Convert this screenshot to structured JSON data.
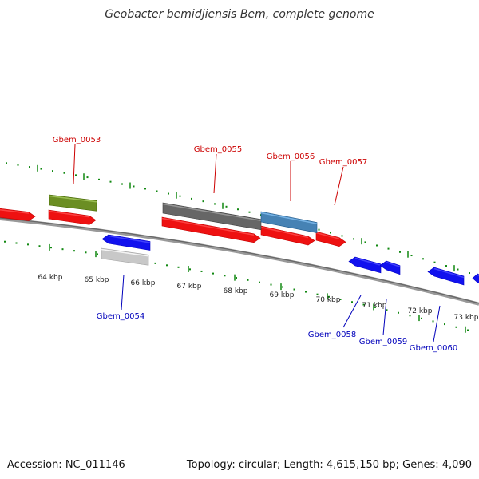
{
  "title": "Geobacter bemidjiensis Bem, complete genome",
  "colors": {
    "forward_strand": "#ee1111",
    "reverse_strand": "#1111ee",
    "forward_label": "#cc0000",
    "reverse_label": "#0000bb",
    "backbone": "#888888",
    "tick": "#118811",
    "olive_feature": "#6b8e23",
    "grey_feature": "#666666",
    "light_grey_feature": "#c8c8c8",
    "steelblue_feature": "#4682b4"
  },
  "scale": {
    "unit": "kbp",
    "labels": [
      "64 kbp",
      "65 kbp",
      "66 kbp",
      "67 kbp",
      "68 kbp",
      "69 kbp",
      "70 kbp",
      "71 kbp",
      "72 kbp",
      "73 kbp"
    ]
  },
  "forward_labels": [
    "Gbem_0053",
    "Gbem_0055",
    "Gbem_0056",
    "Gbem_0057"
  ],
  "reverse_labels": [
    "Gbem_0054",
    "Gbem_0058",
    "Gbem_0059",
    "Gbem_0060"
  ],
  "footer": {
    "accession": "Accession: NC_011146",
    "summary": "Topology: circular; Length: 4,615,150 bp; Genes: 4,090"
  }
}
